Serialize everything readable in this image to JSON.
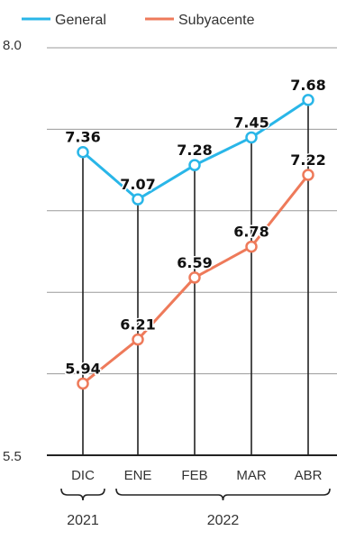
{
  "chart_data": {
    "type": "line",
    "categories": [
      "DIC",
      "ENE",
      "FEB",
      "MAR",
      "ABR"
    ],
    "series": [
      {
        "name": "General",
        "values": [
          7.36,
          7.07,
          7.28,
          7.45,
          7.68
        ],
        "labels": [
          "7.36",
          "7.07",
          "7.28",
          "7.45",
          "7.68"
        ],
        "color": "#29b6e8"
      },
      {
        "name": "Subyacente",
        "values": [
          5.94,
          6.21,
          6.59,
          6.78,
          7.22
        ],
        "labels": [
          "5.94",
          "6.21",
          "6.59",
          "6.78",
          "7.22"
        ],
        "color": "#ee7a5a"
      }
    ],
    "ylim": [
      5.5,
      8.0
    ],
    "y_tick_labels": [
      "8.0",
      "5.5"
    ],
    "gridlines": [
      6.0,
      6.5,
      7.0,
      7.5,
      8.0
    ],
    "year_groups": [
      {
        "label": "2021",
        "from": 0,
        "to": 0
      },
      {
        "label": "2022",
        "from": 1,
        "to": 4
      }
    ],
    "legend_position": "top-left",
    "grid": true
  }
}
